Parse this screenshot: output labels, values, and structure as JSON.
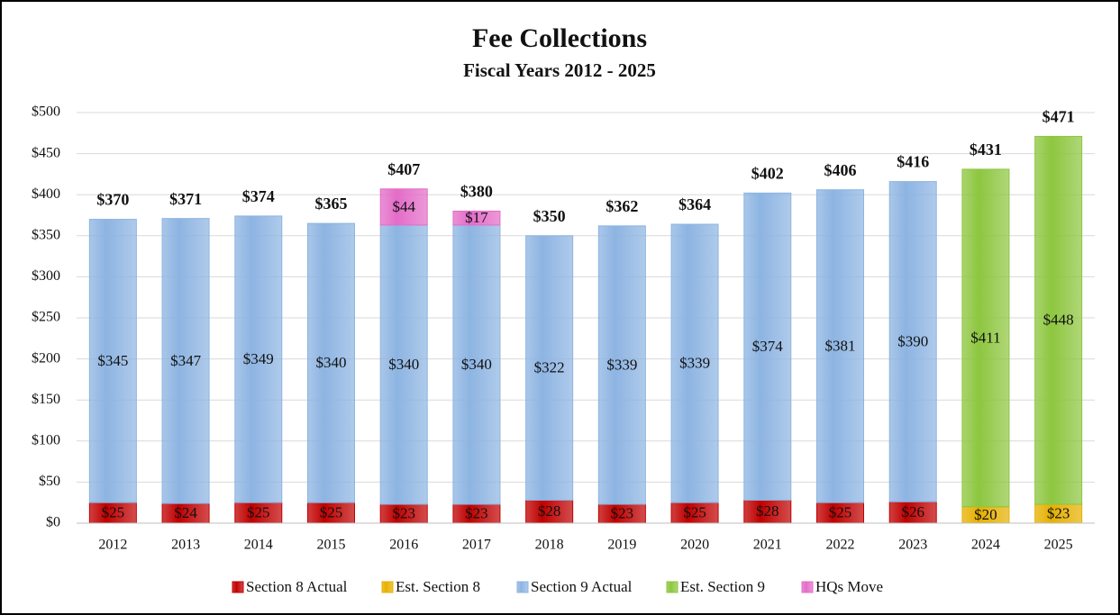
{
  "chart_data": {
    "type": "bar",
    "stacked": true,
    "title": "Fee Collections",
    "subtitle": "Fiscal Years 2012 - 2025",
    "categories": [
      "2012",
      "2013",
      "2014",
      "2015",
      "2016",
      "2017",
      "2018",
      "2019",
      "2020",
      "2021",
      "2022",
      "2023",
      "2024",
      "2025"
    ],
    "series": [
      {
        "name": "Section 8 Actual",
        "color": "#c00000",
        "values": [
          25,
          24,
          25,
          25,
          23,
          23,
          28,
          23,
          25,
          28,
          25,
          26,
          null,
          null
        ],
        "value_labels": [
          "$25",
          "$24",
          "$25",
          "$25",
          "$23",
          "$23",
          "$28",
          "$23",
          "$25",
          "$28",
          "$25",
          "$26",
          null,
          null
        ]
      },
      {
        "name": "Est. Section 8",
        "color": "#e6b000",
        "values": [
          null,
          null,
          null,
          null,
          null,
          null,
          null,
          null,
          null,
          null,
          null,
          null,
          20,
          23
        ],
        "value_labels": [
          null,
          null,
          null,
          null,
          null,
          null,
          null,
          null,
          null,
          null,
          null,
          null,
          "$20",
          "$23"
        ]
      },
      {
        "name": "Section 9 Actual",
        "color": "#8db4e2",
        "values": [
          345,
          347,
          349,
          340,
          340,
          340,
          322,
          339,
          339,
          374,
          381,
          390,
          null,
          null
        ],
        "value_labels": [
          "$345",
          "$347",
          "$349",
          "$340",
          "$340",
          "$340",
          "$322",
          "$339",
          "$339",
          "$374",
          "$381",
          "$390",
          null,
          null
        ]
      },
      {
        "name": "Est. Section 9",
        "color": "#8dc63f",
        "values": [
          null,
          null,
          null,
          null,
          null,
          null,
          null,
          null,
          null,
          null,
          null,
          null,
          411,
          448
        ],
        "value_labels": [
          null,
          null,
          null,
          null,
          null,
          null,
          null,
          null,
          null,
          null,
          null,
          null,
          "$411",
          "$448"
        ]
      },
      {
        "name": "HQs Move",
        "color": "#e36cc8",
        "values": [
          null,
          null,
          null,
          null,
          44,
          17,
          null,
          null,
          null,
          null,
          null,
          null,
          null,
          null
        ],
        "value_labels": [
          null,
          null,
          null,
          null,
          "$44",
          "$17",
          null,
          null,
          null,
          null,
          null,
          null,
          null,
          null
        ]
      }
    ],
    "totals": [
      370,
      371,
      374,
      365,
      407,
      380,
      350,
      362,
      364,
      402,
      406,
      416,
      431,
      471
    ],
    "total_labels": [
      "$370",
      "$371",
      "$374",
      "$365",
      "$407",
      "$380",
      "$350",
      "$362",
      "$364",
      "$402",
      "$406",
      "$416",
      "$431",
      "$471"
    ],
    "ylim": [
      0,
      500
    ],
    "yticks": [
      {
        "value": 0,
        "label": "$0"
      },
      {
        "value": 50,
        "label": "$50"
      },
      {
        "value": 100,
        "label": "$100"
      },
      {
        "value": 150,
        "label": "$150"
      },
      {
        "value": 200,
        "label": "$200"
      },
      {
        "value": 250,
        "label": "$250"
      },
      {
        "value": 300,
        "label": "$300"
      },
      {
        "value": 350,
        "label": "$350"
      },
      {
        "value": 400,
        "label": "$400"
      },
      {
        "value": 450,
        "label": "$450"
      },
      {
        "value": 500,
        "label": "$500"
      }
    ],
    "grid": true,
    "legend": "bottom"
  }
}
